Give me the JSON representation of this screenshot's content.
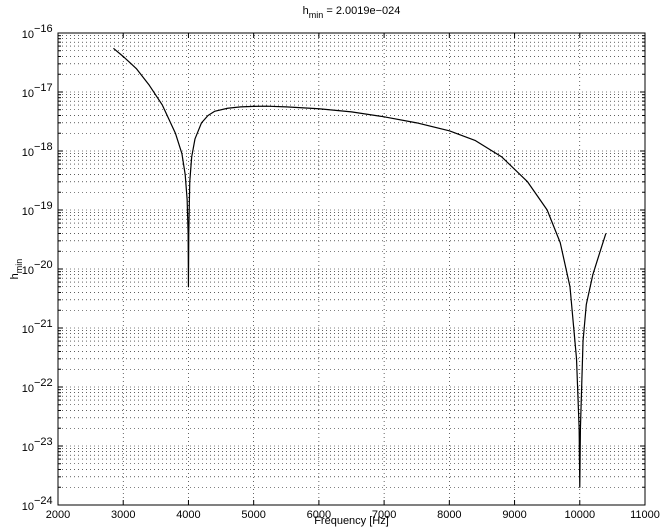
{
  "chart_data": {
    "type": "line",
    "title_main": "h",
    "title_sub": "min",
    "title_rest": " = 2.0019e−024",
    "xlabel": "Frequency [Hz]",
    "ylabel_main": "h",
    "ylabel_sub": "min",
    "xlim": [
      2000,
      11000
    ],
    "ylim_exp": [
      -24,
      -16
    ],
    "y_scale": "log",
    "grid": true,
    "x_ticks": [
      2000,
      3000,
      4000,
      5000,
      6000,
      7000,
      8000,
      9000,
      10000,
      11000
    ],
    "y_tick_base": "10",
    "y_tick_exps": [
      "−24",
      "−23",
      "−22",
      "−21",
      "−20",
      "−19",
      "−18",
      "−17",
      "−16"
    ],
    "series": [
      {
        "color": "#000000",
        "x": [
          2850,
          3000,
          3200,
          3400,
          3600,
          3800,
          3900,
          3950,
          3980,
          3995,
          4000,
          4005,
          4020,
          4050,
          4100,
          4200,
          4300,
          4400,
          4600,
          4800,
          5000,
          5200,
          5500,
          6000,
          6500,
          7000,
          7500,
          8000,
          8400,
          8800,
          9200,
          9500,
          9700,
          9850,
          9950,
          9990,
          10000,
          10010,
          10050,
          10100,
          10200,
          10300,
          10400
        ],
        "y": [
          5.5e-17,
          4e-17,
          2.5e-17,
          1.3e-17,
          6e-18,
          2e-18,
          9e-19,
          4e-19,
          1.5e-19,
          4e-20,
          5e-21,
          4e-20,
          3e-19,
          8e-19,
          1.6e-18,
          3e-18,
          4e-18,
          4.7e-18,
          5.3e-18,
          5.6e-18,
          5.7e-18,
          5.75e-18,
          5.6e-18,
          5.2e-18,
          4.6e-18,
          3.8e-18,
          3e-18,
          2.2e-18,
          1.5e-18,
          8e-19,
          3e-19,
          1e-19,
          2.8e-20,
          5e-21,
          3e-22,
          2e-23,
          2e-24,
          2e-23,
          6e-22,
          2.5e-21,
          8e-21,
          1.8e-20,
          4e-20
        ]
      }
    ]
  }
}
